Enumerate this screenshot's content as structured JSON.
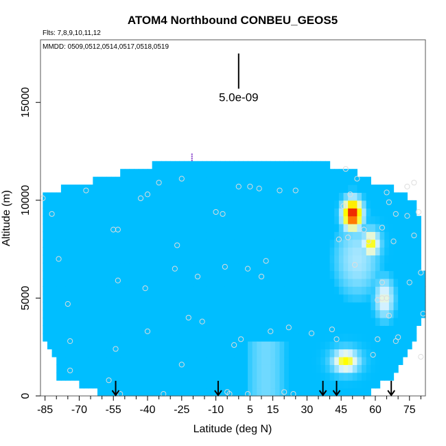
{
  "chart_data": {
    "type": "heatmap",
    "title": "ATOM4 Northbound CONBEU_GEOS5",
    "flights_note": "Flts: 7,8,9,10,11,12",
    "dates_note": "MMDD: 0509,0512,0514,0517,0518,0519",
    "xlabel": "Latitude (deg N)",
    "ylabel": "Altitude (m)",
    "xlim": [
      -87,
      82
    ],
    "ylim": [
      0,
      18200
    ],
    "x_ticks": [
      -85,
      -70,
      -55,
      -40,
      -25,
      -10,
      5,
      15,
      30,
      45,
      60,
      75
    ],
    "x_minor_ticks": [
      -80,
      -75,
      -65,
      -60,
      -50,
      -45,
      -35,
      -30,
      -20,
      -15,
      -5,
      0,
      10,
      20,
      25,
      35,
      40,
      50,
      55,
      65,
      70,
      80
    ],
    "y_ticks": [
      0,
      5000,
      10000,
      15000
    ],
    "scale_bar_label": "5.0e-09",
    "scale_bar_top_altitude": 17500,
    "scale_bar_bottom_altitude": 15700,
    "scale_bar_latitude": 0,
    "tropopause_marker": {
      "lat": -20.5,
      "alt_bottom": 12000,
      "alt_top": 12400
    },
    "arrow_latitudes": [
      -54,
      -9,
      37,
      43,
      67
    ],
    "colors": {
      "low_purple": "#7b1fe8",
      "dark_blue": "#00008f",
      "blue": "#0033ff",
      "cyan": "#00bfff",
      "light": "#e0f4ff",
      "yellow": "#ffff00",
      "red": "#ff0000"
    },
    "grid": false,
    "legend": "none",
    "sample_points": [
      [
        -86,
        10100
      ],
      [
        -82,
        9300
      ],
      [
        -79,
        7000
      ],
      [
        -75,
        4700
      ],
      [
        -74,
        2800
      ],
      [
        -74,
        1300
      ],
      [
        -67,
        10500
      ],
      [
        -55,
        8500
      ],
      [
        -53,
        8500
      ],
      [
        -53,
        5900
      ],
      [
        -54,
        2400
      ],
      [
        -57,
        800
      ],
      [
        -52,
        100
      ],
      [
        -43,
        10100
      ],
      [
        -40,
        10300
      ],
      [
        -41,
        5500
      ],
      [
        -40,
        3300
      ],
      [
        -35,
        10900
      ],
      [
        -33,
        100
      ],
      [
        -27,
        7700
      ],
      [
        -28,
        6500
      ],
      [
        -25,
        11100
      ],
      [
        -25,
        1600
      ],
      [
        -22,
        4000
      ],
      [
        -18,
        6100
      ],
      [
        -16,
        3800
      ],
      [
        -10,
        9400
      ],
      [
        -7,
        9300
      ],
      [
        -6,
        6600
      ],
      [
        -5,
        200
      ],
      [
        -2,
        2600
      ],
      [
        -4,
        100
      ],
      [
        0,
        10700
      ],
      [
        4,
        6500
      ],
      [
        5,
        10700
      ],
      [
        1,
        2900
      ],
      [
        4,
        100
      ],
      [
        9,
        10600
      ],
      [
        10,
        6100
      ],
      [
        12,
        6900
      ],
      [
        14,
        3300
      ],
      [
        18,
        10500
      ],
      [
        20,
        200
      ],
      [
        22,
        3500
      ],
      [
        25,
        10500
      ],
      [
        24,
        100
      ],
      [
        32,
        3200
      ],
      [
        41,
        3400
      ],
      [
        43,
        2900
      ],
      [
        44,
        8000
      ],
      [
        46,
        9700
      ],
      [
        47,
        11600
      ],
      [
        48,
        8100
      ],
      [
        49,
        10300
      ],
      [
        51,
        6700
      ],
      [
        52,
        11100
      ],
      [
        55,
        8500
      ],
      [
        57,
        7900
      ],
      [
        59,
        2100
      ],
      [
        61,
        4900
      ],
      [
        61,
        2900
      ],
      [
        63,
        5800
      ],
      [
        63,
        8600
      ],
      [
        63,
        5000
      ],
      [
        65,
        10400
      ],
      [
        66,
        4100
      ],
      [
        65,
        5000
      ],
      [
        66,
        9900
      ],
      [
        68,
        7900
      ],
      [
        69,
        9300
      ],
      [
        69,
        2800
      ],
      [
        70,
        3000
      ],
      [
        74,
        10700
      ],
      [
        74,
        9200
      ],
      [
        75,
        5800
      ],
      [
        77,
        8200
      ],
      [
        77,
        10900
      ],
      [
        79,
        9400
      ],
      [
        80,
        6300
      ],
      [
        80,
        2000
      ],
      [
        81,
        4200
      ]
    ]
  }
}
